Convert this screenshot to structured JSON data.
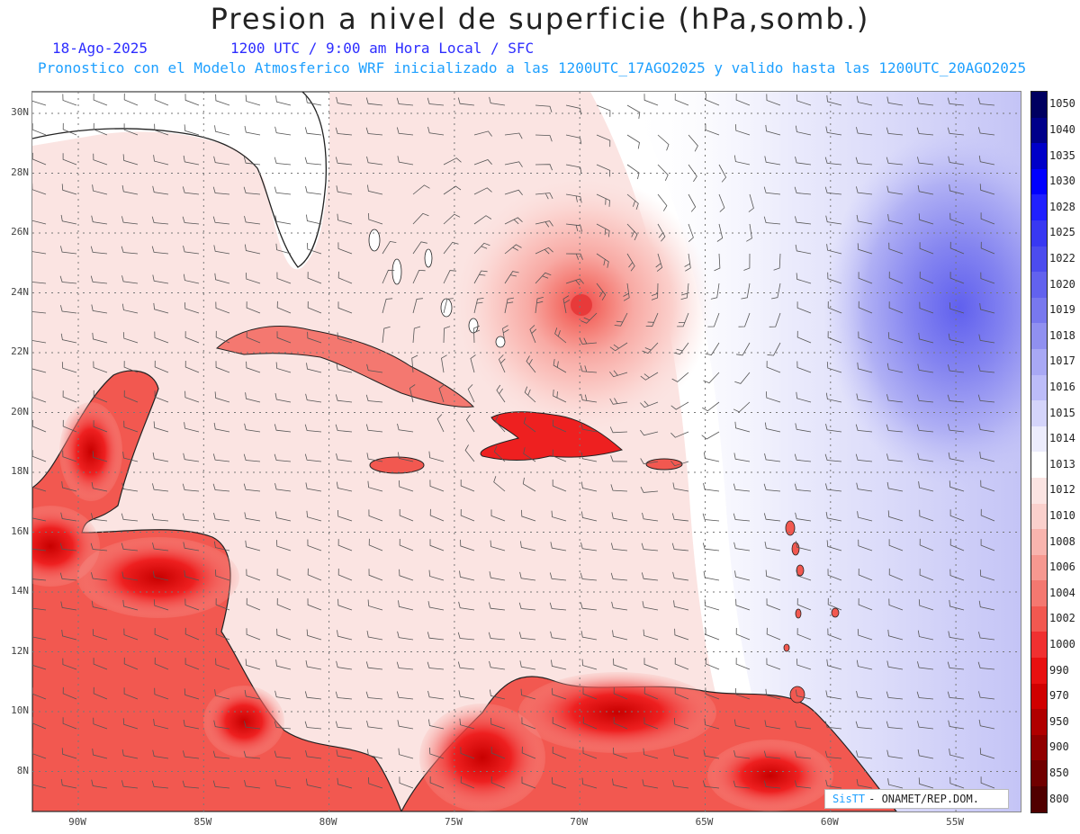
{
  "header": {
    "title": "Presion a nivel de superficie (hPa,somb.)",
    "date": "18-Ago-2025",
    "valid_time": "1200 UTC / 9:00 am Hora Local / SFC",
    "model_line": "Pronostico con el Modelo Atmosferico WRF inicializado a las 1200UTC_17AGO2025 y valido hasta las  1200UTC_20AGO2025"
  },
  "axes": {
    "lat_labels": [
      "30N",
      "28N",
      "26N",
      "24N",
      "22N",
      "20N",
      "18N",
      "16N",
      "14N",
      "12N",
      "10N",
      "8N"
    ],
    "lon_labels": [
      "90W",
      "85W",
      "80W",
      "75W",
      "70W",
      "65W",
      "60W",
      "55W"
    ]
  },
  "colorbar": {
    "labels": [
      "1050",
      "1040",
      "1035",
      "1030",
      "1028",
      "1025",
      "1022",
      "1020",
      "1019",
      "1018",
      "1017",
      "1016",
      "1015",
      "1014",
      "1013",
      "1012",
      "1010",
      "1008",
      "1006",
      "1004",
      "1002",
      "1000",
      "990",
      "970",
      "950",
      "900",
      "850",
      "800"
    ],
    "colors": [
      "#000060",
      "#00008a",
      "#0000c8",
      "#0000ff",
      "#2020ff",
      "#3838f2",
      "#4c4cee",
      "#6262ee",
      "#7878ee",
      "#9090f0",
      "#a8a8f4",
      "#bcbcf8",
      "#d4d4fa",
      "#ececfc",
      "#ffffff",
      "#fbe4e2",
      "#fad0cc",
      "#f8b4ae",
      "#f69890",
      "#f47870",
      "#f25850",
      "#f03030",
      "#e81010",
      "#d00000",
      "#b00000",
      "#900000",
      "#700000",
      "#500000"
    ]
  },
  "credit": {
    "logo": "SisTT",
    "text": "- ONAMET/REP.DOM."
  }
}
